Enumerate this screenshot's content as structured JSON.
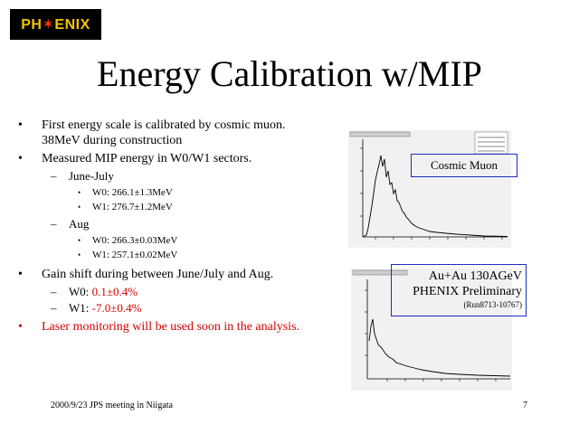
{
  "logo": {
    "prefix": "PH",
    "star": "✶",
    "suffix": "ENIX"
  },
  "title": "Energy Calibration w/MIP",
  "bullets": {
    "b1": "First energy scale is calibrated by cosmic muon. 38MeV during construction",
    "b2": "Measured MIP energy in W0/W1 sectors.",
    "june": "June-July",
    "june_w0": "W0: 266.1±1.3MeV",
    "june_w1": "W1: 276.7±1.2MeV",
    "aug": "Aug",
    "aug_w0": "W0: 266.3±0.03MeV",
    "aug_w1": "W1: 257.1±0.02MeV",
    "b3": "Gain shift during between June/July and Aug.",
    "shift_w0_label": "W0:",
    "shift_w0_value": "0.1±0.4%",
    "shift_w1_label": "W1:",
    "shift_w1_value": "-7.0±0.4%",
    "b4": "Laser monitoring will be used soon in the analysis."
  },
  "plots": {
    "cosmic_label": "Cosmic Muon",
    "auau_line1": "Au+Au 130AGeV",
    "auau_line2": "PHENIX Preliminary",
    "auau_line3": "(Run8713-10767)"
  },
  "footer": "2000/9/23 JPS meeting in Niigata",
  "page_number": "7",
  "colors": {
    "accent_red": "#d40000",
    "box_blue": "#1b2dc4",
    "logo_gold": "#f2c400"
  }
}
